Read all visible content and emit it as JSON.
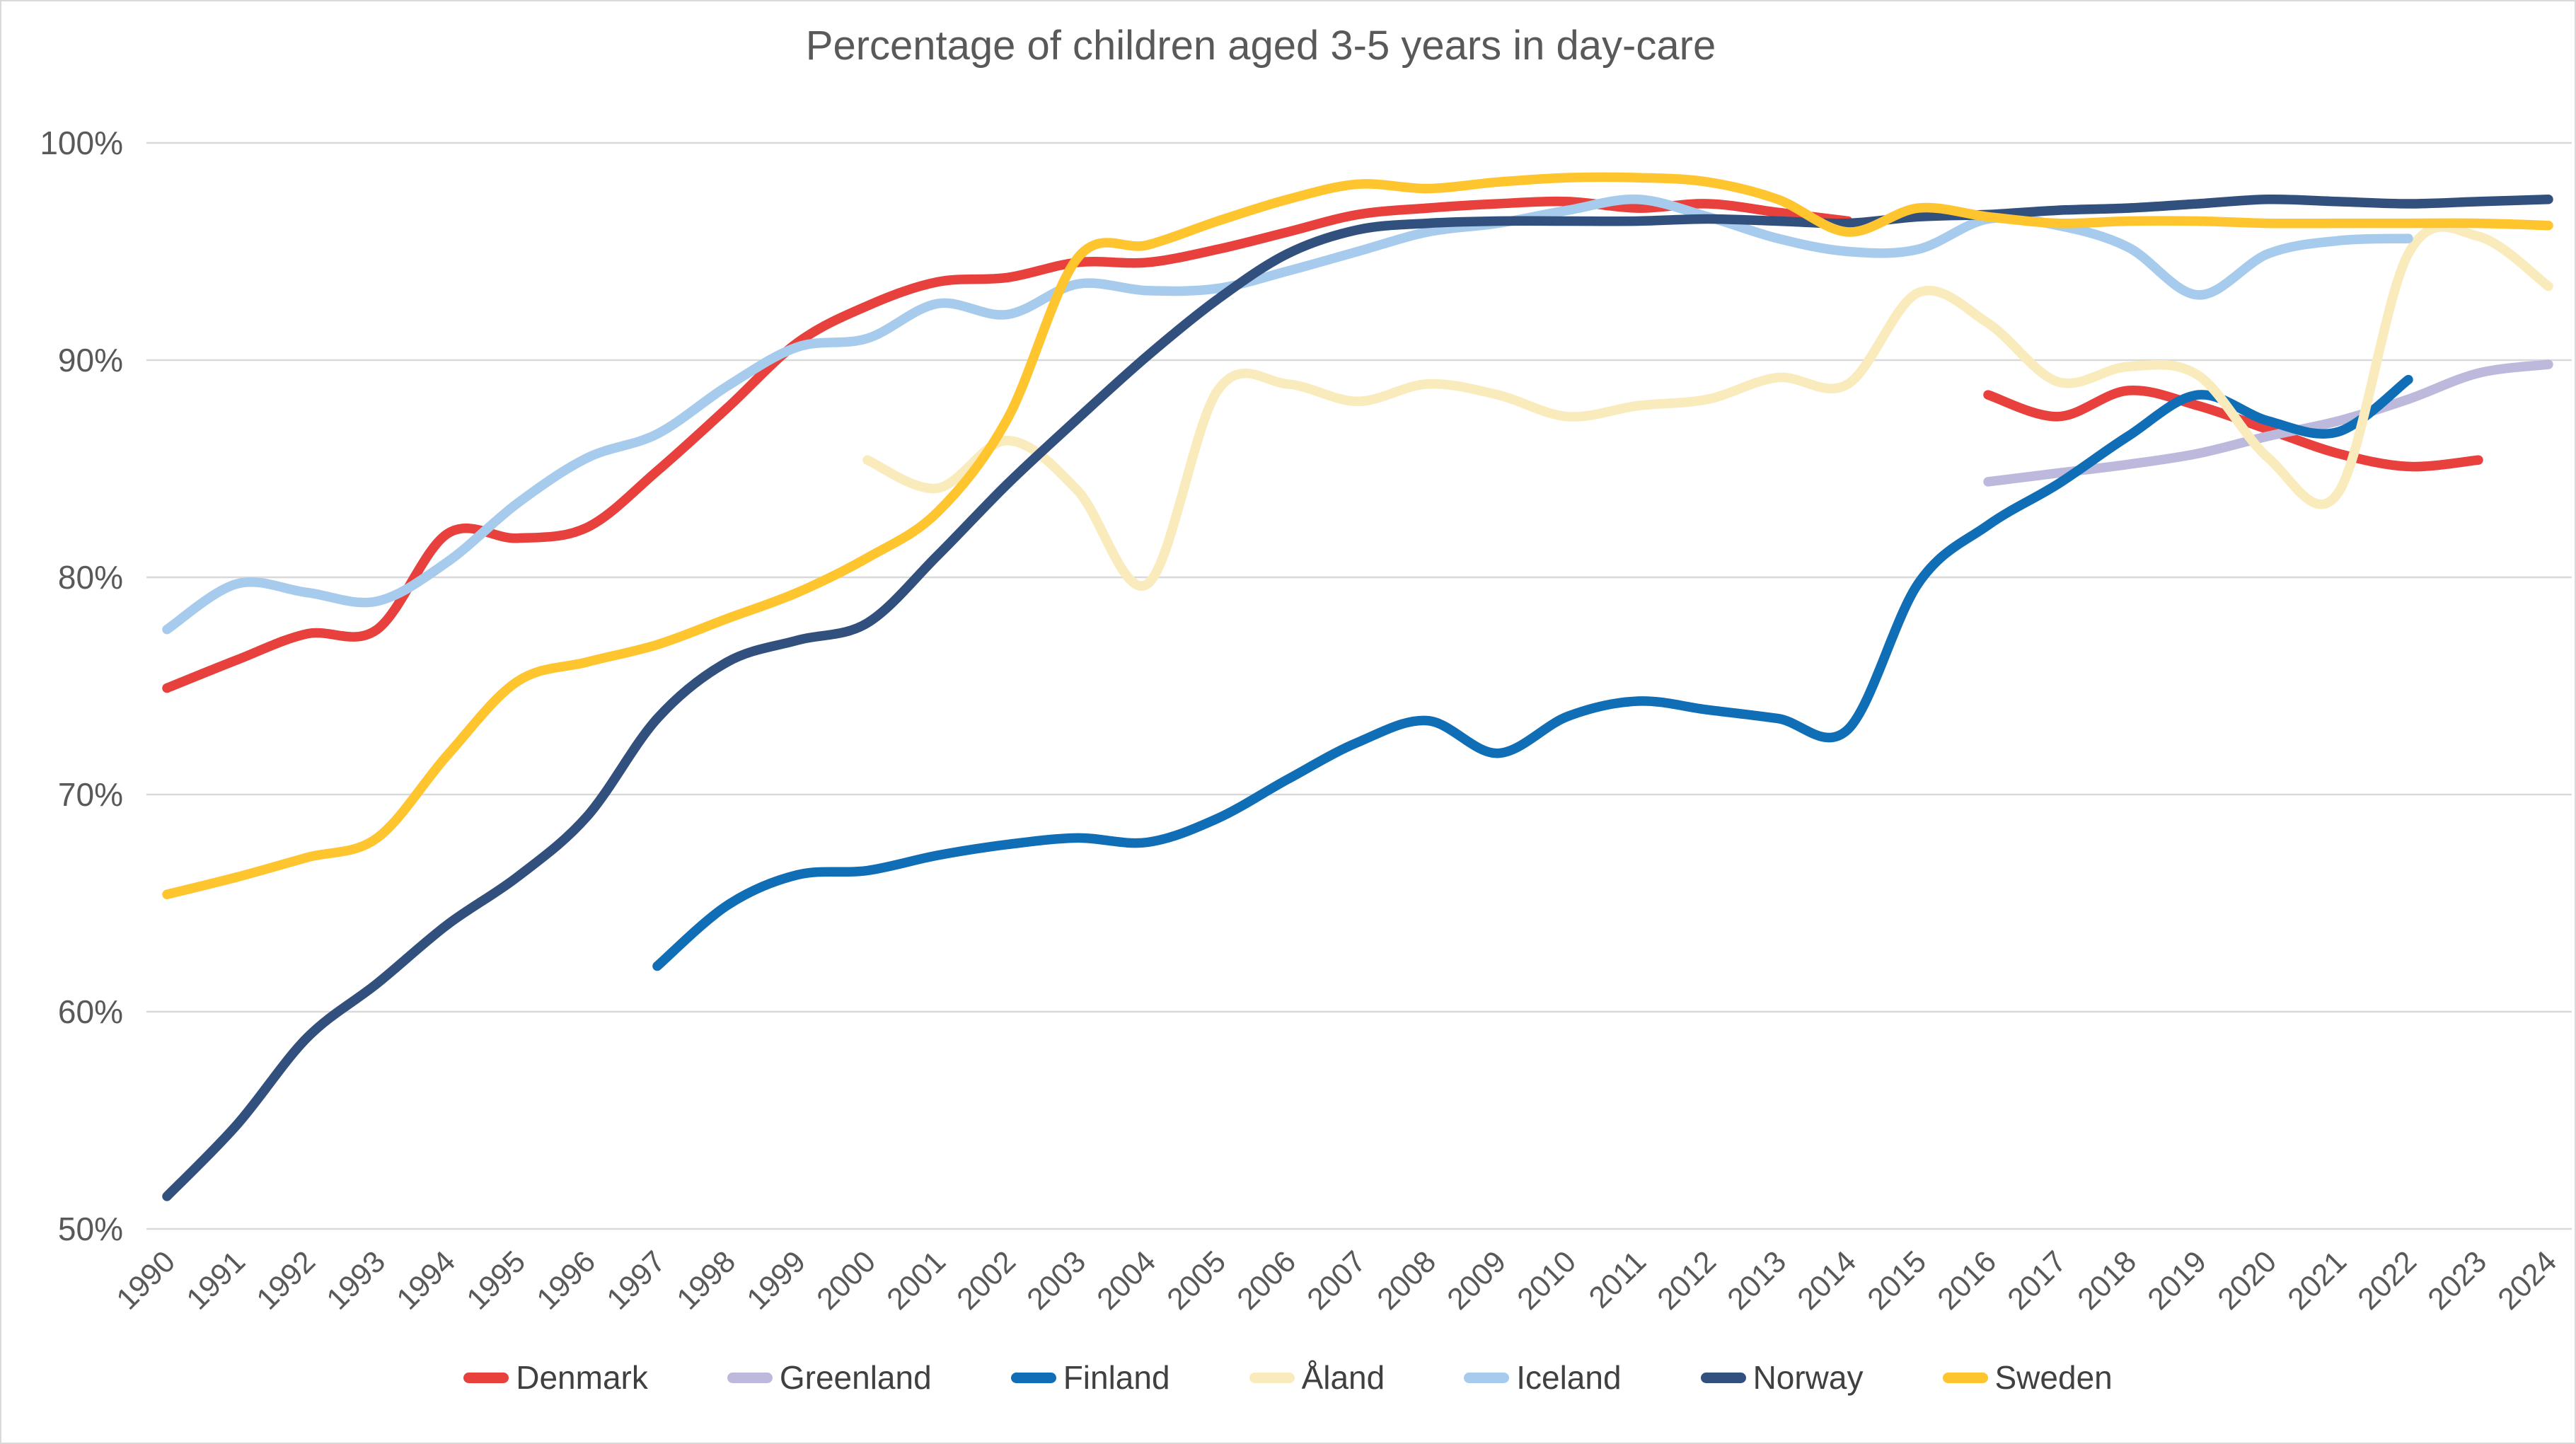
{
  "title": "Percentage of children aged 3-5 years in day-care",
  "chart_data": {
    "type": "line",
    "title": "Percentage of children aged 3-5 years in day-care",
    "xlabel": "",
    "ylabel": "",
    "x_start": 1990,
    "x_end": 2024,
    "ylim": [
      50,
      100
    ],
    "y_tick_step": 10,
    "y_tick_suffix": "%",
    "grid": "horizontal",
    "legend_position": "bottom",
    "title_color": "#595959",
    "tick_color": "#595959",
    "grid_color": "#d9d9d9",
    "series": [
      {
        "name": "Denmark",
        "color": "#e8403c",
        "segments": [
          {
            "start": 1990,
            "values": [
              74.9,
              76.2,
              77.4,
              77.6,
              82.0,
              81.8,
              82.3,
              84.9,
              87.8,
              90.8,
              92.5,
              93.6,
              93.8,
              94.5,
              94.5,
              95.1,
              95.9,
              96.7,
              97.0,
              97.2,
              97.3,
              97.0,
              97.2,
              96.8,
              96.4
            ]
          },
          {
            "start": 2016,
            "values": [
              88.4,
              87.4,
              88.6,
              87.9,
              86.8,
              85.7,
              85.1,
              85.4
            ]
          }
        ]
      },
      {
        "name": "Greenland",
        "color": "#bdb9dc",
        "segments": [
          {
            "start": 2016,
            "values": [
              84.4,
              84.8,
              85.2,
              85.7,
              86.5,
              87.2,
              88.2,
              89.4,
              89.8
            ]
          }
        ]
      },
      {
        "name": "Finland",
        "color": "#0f6eb5",
        "segments": [
          {
            "start": 1997,
            "values": [
              62.1,
              64.9,
              66.3,
              66.5,
              67.2,
              67.7,
              68.0,
              67.8,
              68.9,
              70.7,
              72.4,
              73.4,
              71.9,
              73.6,
              74.3,
              73.9,
              73.5,
              73.0,
              79.7,
              82.4,
              84.3,
              86.5,
              88.4,
              87.2,
              86.7,
              89.1
            ]
          }
        ]
      },
      {
        "name": "Åland",
        "color": "#faebbd",
        "segments": [
          {
            "start": 2000,
            "values": [
              85.4,
              84.1,
              86.3,
              84.0,
              79.7,
              88.6,
              88.9,
              88.1,
              88.9,
              88.4,
              87.4,
              87.9,
              88.2,
              89.2,
              88.9,
              93.1,
              91.7,
              89.0,
              89.7,
              89.3,
              85.5,
              83.9,
              94.9,
              95.7,
              93.4
            ]
          }
        ]
      },
      {
        "name": "Iceland",
        "color": "#a7cbec",
        "segments": [
          {
            "start": 1990,
            "values": [
              77.6,
              79.7,
              79.3,
              78.9,
              80.7,
              83.4,
              85.5,
              86.6,
              88.8,
              90.6,
              91.0,
              92.6,
              92.1,
              93.5,
              93.2,
              93.3,
              94.1,
              95.0,
              95.9,
              96.3,
              96.9,
              97.4,
              96.6,
              95.6,
              95.0,
              95.1,
              96.5,
              96.2,
              95.2,
              93.0,
              94.9,
              95.5,
              95.6
            ]
          }
        ]
      },
      {
        "name": "Norway",
        "color": "#31507e",
        "segments": [
          {
            "start": 1990,
            "values": [
              51.5,
              54.8,
              58.8,
              61.3,
              64.0,
              66.2,
              69.0,
              73.5,
              76.1,
              77.1,
              77.9,
              81.0,
              84.3,
              87.3,
              90.2,
              92.8,
              94.9,
              96.0,
              96.3,
              96.4,
              96.4,
              96.4,
              96.5,
              96.4,
              96.3,
              96.6,
              96.7,
              96.9,
              97.0,
              97.2,
              97.4,
              97.3,
              97.2,
              97.3,
              97.4
            ]
          }
        ]
      },
      {
        "name": "Sweden",
        "color": "#ffc52f",
        "segments": [
          {
            "start": 1990,
            "values": [
              65.4,
              66.2,
              67.1,
              68.0,
              71.8,
              75.2,
              76.1,
              76.9,
              78.1,
              79.3,
              80.9,
              83.0,
              87.3,
              94.7,
              95.3,
              96.4,
              97.4,
              98.1,
              97.9,
              98.2,
              98.4,
              98.4,
              98.2,
              97.4,
              95.9,
              97.0,
              96.6,
              96.3,
              96.4,
              96.4,
              96.3,
              96.3,
              96.3,
              96.3,
              96.2
            ]
          }
        ]
      }
    ]
  }
}
